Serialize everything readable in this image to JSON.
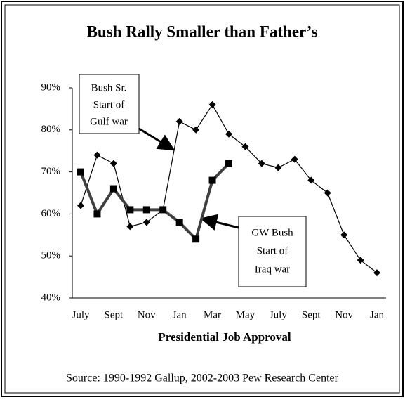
{
  "chart_data": {
    "type": "line",
    "title": "Bush Rally Smaller than Father’s",
    "x_label": "Presidential Job Approval",
    "source": "Source: 1990-1992 Gallup, 2002-2003 Pew Research Center",
    "categories": [
      "July",
      null,
      "Sept",
      null,
      "Nov",
      null,
      "Jan",
      null,
      "Mar",
      null,
      "May",
      null,
      "July",
      null,
      "Sept",
      null,
      "Nov",
      null,
      "Jan"
    ],
    "series": [
      {
        "name": "Bush Sr.",
        "note": [
          "Start of",
          "Gulf war"
        ],
        "color": "#000000",
        "marker": "diamond",
        "values": [
          62,
          74,
          72,
          57,
          58,
          61,
          82,
          80,
          86,
          79,
          76,
          72,
          71,
          73,
          68,
          65,
          55,
          49,
          46
        ]
      },
      {
        "name": "GW Bush",
        "note": [
          "Start of",
          "Iraq war"
        ],
        "color": "#404040",
        "marker": "square",
        "values": [
          70,
          60,
          66,
          61,
          61,
          61,
          58,
          54,
          68,
          72,
          null,
          null,
          null,
          null,
          null,
          null,
          null,
          null,
          null
        ]
      }
    ],
    "ylim": [
      40,
      90
    ],
    "yticks": [
      {
        "value": 40,
        "label": "40%"
      },
      {
        "value": 50,
        "label": "50%"
      },
      {
        "value": 60,
        "label": "60%"
      },
      {
        "value": 70,
        "label": "70%"
      },
      {
        "value": 80,
        "label": "80%"
      },
      {
        "value": 90,
        "label": "90%"
      }
    ]
  }
}
